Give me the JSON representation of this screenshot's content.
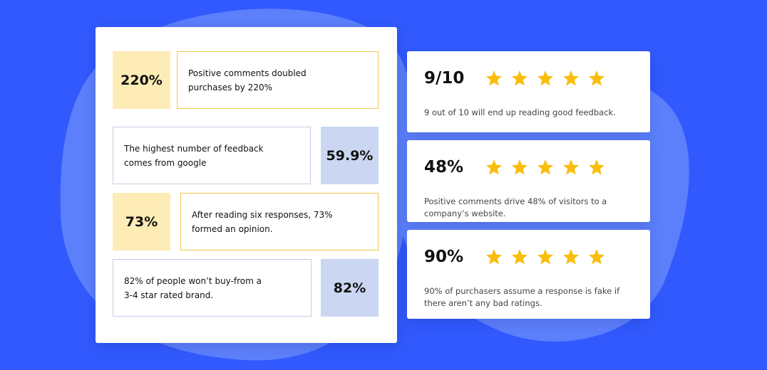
{
  "stats": [
    {
      "value": "220%",
      "text": [
        "Positive comments doubled",
        "purchases by 220%"
      ]
    },
    {
      "value": "59.9%",
      "text": [
        "The highest number of feedback",
        "comes from google"
      ]
    },
    {
      "value": "73%",
      "text": [
        "After reading six responses, 73%",
        "formed an opinion."
      ]
    },
    {
      "value": "82%",
      "text": [
        "82% of people won’t buy-from a",
        "3-4 star rated brand."
      ]
    }
  ],
  "cards": [
    {
      "value": "9/10",
      "text": [
        "9 out of 10 will end up reading good feedback."
      ]
    },
    {
      "value": "48%",
      "text": [
        "Positive comments drive 48% of visitors to a",
        "company’s website."
      ]
    },
    {
      "value": "90%",
      "text": [
        "90% of purchasers assume a response is fake if",
        "there aren’t any bad ratings."
      ]
    }
  ]
}
